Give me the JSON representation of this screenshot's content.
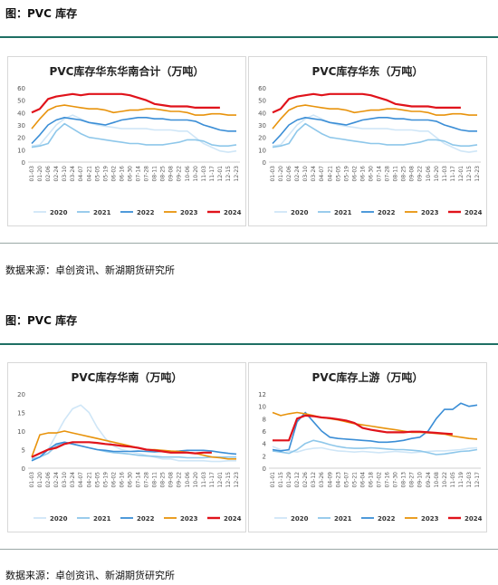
{
  "section1": {
    "title": "图：PVC 库存",
    "source": "数据来源：卓创资讯、新湖期货研究所"
  },
  "section2": {
    "title": "图：PVC 库存",
    "source": "数据来源：卓创资讯、新湖期货研究所"
  },
  "colors": {
    "2020": "#cfe6f7",
    "2021": "#8ec7ea",
    "2022": "#3b8ed6",
    "2023": "#e8930c",
    "2024": "#e0131b"
  },
  "chart_data": [
    {
      "type": "line",
      "title": "PVC库存华东华南合计（万吨）",
      "ylim": [
        0,
        60
      ],
      "yticks": [
        0,
        10,
        20,
        30,
        40,
        50,
        60
      ],
      "x": [
        "01-03",
        "01-20",
        "02-06",
        "02-24",
        "03-10",
        "03-24",
        "04-07",
        "04-21",
        "05-05",
        "05-19",
        "06-02",
        "06-16",
        "06-30",
        "07-14",
        "07-28",
        "08-11",
        "08-25",
        "09-08",
        "09-22",
        "10-06",
        "10-20",
        "11-03",
        "11-17",
        "12-01",
        "12-15",
        "12-23"
      ],
      "legend": "bottom",
      "grid": false,
      "series": [
        {
          "name": "2020",
          "values": [
            13,
            14,
            22,
            30,
            35,
            38,
            35,
            32,
            30,
            29,
            28,
            27,
            27,
            27,
            27,
            26,
            26,
            26,
            25,
            25,
            20,
            15,
            12,
            9,
            8,
            9
          ]
        },
        {
          "name": "2021",
          "values": [
            12,
            13,
            15,
            25,
            31,
            27,
            23,
            20,
            19,
            18,
            17,
            16,
            15,
            15,
            14,
            14,
            14,
            15,
            16,
            18,
            18,
            17,
            14,
            13,
            13,
            14
          ]
        },
        {
          "name": "2022",
          "values": [
            15,
            22,
            30,
            34,
            36,
            35,
            34,
            32,
            31,
            30,
            32,
            34,
            35,
            36,
            36,
            35,
            35,
            34,
            34,
            34,
            33,
            30,
            28,
            26,
            25,
            25
          ]
        },
        {
          "name": "2023",
          "values": [
            27,
            35,
            42,
            45,
            46,
            45,
            44,
            43,
            43,
            42,
            40,
            41,
            42,
            42,
            43,
            43,
            42,
            41,
            41,
            40,
            38,
            38,
            39,
            39,
            38,
            38
          ]
        },
        {
          "name": "2024",
          "values": [
            40,
            43,
            51,
            53,
            54,
            55,
            54,
            55,
            55,
            55,
            55,
            55,
            54,
            52,
            50,
            47,
            46,
            45,
            45,
            45,
            44,
            44,
            44,
            44,
            null,
            null
          ]
        }
      ]
    },
    {
      "type": "line",
      "title": "PVC库存华东（万吨）",
      "ylim": [
        0,
        60
      ],
      "yticks": [
        0,
        10,
        20,
        30,
        40,
        50,
        60
      ],
      "x": [
        "01-03",
        "01-20",
        "02-06",
        "02-24",
        "03-10",
        "03-24",
        "04-07",
        "04-21",
        "05-05",
        "05-19",
        "06-02",
        "06-16",
        "06-30",
        "07-14",
        "07-28",
        "08-11",
        "08-25",
        "09-08",
        "09-22",
        "10-06",
        "10-20",
        "11-03",
        "11-17",
        "12-01",
        "12-15",
        "12-23"
      ],
      "legend": "bottom",
      "grid": false,
      "series": [
        {
          "name": "2020",
          "values": [
            13,
            14,
            22,
            30,
            35,
            38,
            35,
            32,
            30,
            29,
            28,
            27,
            27,
            27,
            27,
            26,
            26,
            26,
            25,
            25,
            20,
            15,
            12,
            9,
            8,
            9
          ]
        },
        {
          "name": "2021",
          "values": [
            12,
            13,
            15,
            25,
            31,
            27,
            23,
            20,
            19,
            18,
            17,
            16,
            15,
            15,
            14,
            14,
            14,
            15,
            16,
            18,
            18,
            17,
            14,
            13,
            13,
            14
          ]
        },
        {
          "name": "2022",
          "values": [
            15,
            22,
            30,
            34,
            36,
            35,
            34,
            32,
            31,
            30,
            32,
            34,
            35,
            36,
            36,
            35,
            35,
            34,
            34,
            34,
            33,
            30,
            28,
            26,
            25,
            25
          ]
        },
        {
          "name": "2023",
          "values": [
            27,
            35,
            42,
            45,
            46,
            45,
            44,
            43,
            43,
            42,
            40,
            41,
            42,
            42,
            43,
            43,
            42,
            41,
            41,
            40,
            38,
            38,
            39,
            39,
            38,
            38
          ]
        },
        {
          "name": "2024",
          "values": [
            40,
            43,
            51,
            53,
            54,
            55,
            54,
            55,
            55,
            55,
            55,
            55,
            54,
            52,
            50,
            47,
            46,
            45,
            45,
            45,
            44,
            44,
            44,
            44,
            null,
            null
          ]
        }
      ]
    },
    {
      "type": "line",
      "title": "PVC库存华南（万吨）",
      "ylim": [
        0,
        20
      ],
      "yticks": [
        0,
        5,
        10,
        15,
        20
      ],
      "x": [
        "01-03",
        "01-20",
        "02-06",
        "02-24",
        "03-10",
        "03-24",
        "04-07",
        "04-21",
        "05-05",
        "05-19",
        "06-02",
        "06-16",
        "06-30",
        "07-14",
        "07-28",
        "08-11",
        "08-25",
        "09-08",
        "09-22",
        "10-06",
        "10-20",
        "11-03",
        "11-17",
        "12-01",
        "12-15",
        "12-23"
      ],
      "legend": "bottom",
      "grid": false,
      "series": [
        {
          "name": "2020",
          "values": [
            2,
            3,
            5,
            9,
            13,
            16,
            17,
            15,
            11,
            8,
            6,
            5,
            4.5,
            4,
            3.5,
            3,
            2.5,
            2.5,
            2,
            2,
            2,
            2,
            1.8,
            1.8,
            2,
            2
          ]
        },
        {
          "name": "2021",
          "values": [
            2.5,
            3,
            4,
            6,
            7,
            6.5,
            6,
            5.5,
            5,
            4.5,
            4.2,
            4,
            3.8,
            3.5,
            3.3,
            3.2,
            3,
            3,
            3,
            2.8,
            2.8,
            2.8,
            3,
            3,
            3,
            3
          ]
        },
        {
          "name": "2022",
          "values": [
            2,
            3,
            5,
            6.5,
            7,
            6.5,
            6,
            5.5,
            5,
            4.8,
            4.5,
            4.5,
            4.5,
            4.6,
            4.5,
            4.4,
            4.5,
            4.5,
            4.6,
            4.8,
            4.8,
            4.8,
            4.6,
            4.3,
            4,
            3.8
          ]
        },
        {
          "name": "2023",
          "values": [
            3,
            9,
            9.5,
            9.5,
            10,
            9.5,
            9,
            8.5,
            8,
            7.5,
            7,
            6.5,
            6,
            5.5,
            5,
            5,
            4.8,
            4.6,
            4.5,
            4.3,
            4,
            3.5,
            3,
            2.8,
            2.5,
            2.5
          ]
        },
        {
          "name": "2024",
          "values": [
            3,
            4,
            5,
            5.5,
            6.5,
            7,
            7,
            7,
            6.8,
            6.5,
            6.3,
            6,
            5.8,
            5.5,
            5,
            4.8,
            4.5,
            4.2,
            4.2,
            4.2,
            4,
            4.2,
            4.2,
            null,
            null,
            null
          ]
        }
      ]
    },
    {
      "type": "line",
      "title": "PVC库存上游（万吨）",
      "ylim": [
        0,
        12
      ],
      "yticks": [
        0,
        2,
        4,
        6,
        8,
        10,
        12
      ],
      "x": [
        "01-01",
        "01-15",
        "01-29",
        "02-12",
        "02-26",
        "03-12",
        "03-26",
        "04-09",
        "04-23",
        "05-07",
        "05-21",
        "06-04",
        "06-18",
        "07-02",
        "07-16",
        "07-30",
        "08-13",
        "08-27",
        "09-10",
        "09-24",
        "10-08",
        "10-22",
        "11-05",
        "11-19",
        "12-03",
        "12-17"
      ],
      "legend": "bottom",
      "grid": false,
      "series": [
        {
          "name": "2020",
          "values": [
            3.5,
            3,
            2.8,
            2.6,
            3,
            3.2,
            3.3,
            3,
            2.8,
            2.7,
            2.6,
            2.7,
            2.6,
            2.5,
            2.6,
            2.7,
            2.6,
            2.5,
            2.6,
            2.7,
            2.8,
            2.8,
            2.9,
            3,
            3.2,
            3.3
          ]
        },
        {
          "name": "2021",
          "values": [
            2.8,
            2.6,
            2.4,
            3,
            4,
            4.5,
            4.2,
            3.8,
            3.5,
            3.3,
            3.2,
            3.2,
            3.3,
            3.2,
            3.1,
            3,
            3,
            2.9,
            2.8,
            2.5,
            2.2,
            2.3,
            2.5,
            2.7,
            2.8,
            3
          ]
        },
        {
          "name": "2022",
          "values": [
            3,
            2.8,
            3,
            7.5,
            9,
            7.5,
            6,
            5,
            4.8,
            4.7,
            4.6,
            4.5,
            4.4,
            4.2,
            4.2,
            4.3,
            4.5,
            4.8,
            5,
            6,
            8,
            9.5,
            9.5,
            10.5,
            10,
            10.2
          ]
        },
        {
          "name": "2023",
          "values": [
            9,
            8.5,
            8.8,
            9,
            8.8,
            8.5,
            8.2,
            8,
            7.8,
            7.5,
            7.2,
            7,
            6.8,
            6.6,
            6.4,
            6.2,
            6,
            5.8,
            5.8,
            5.7,
            5.6,
            5.5,
            5.2,
            5,
            4.8,
            4.7
          ]
        },
        {
          "name": "2024",
          "values": [
            4.5,
            4.5,
            4.5,
            8,
            8.5,
            8.4,
            8.2,
            8.1,
            7.9,
            7.7,
            7.3,
            6.5,
            6.2,
            6,
            5.8,
            5.8,
            5.8,
            5.9,
            5.9,
            5.8,
            5.7,
            5.6,
            5.5,
            null,
            null,
            null
          ]
        }
      ]
    }
  ]
}
